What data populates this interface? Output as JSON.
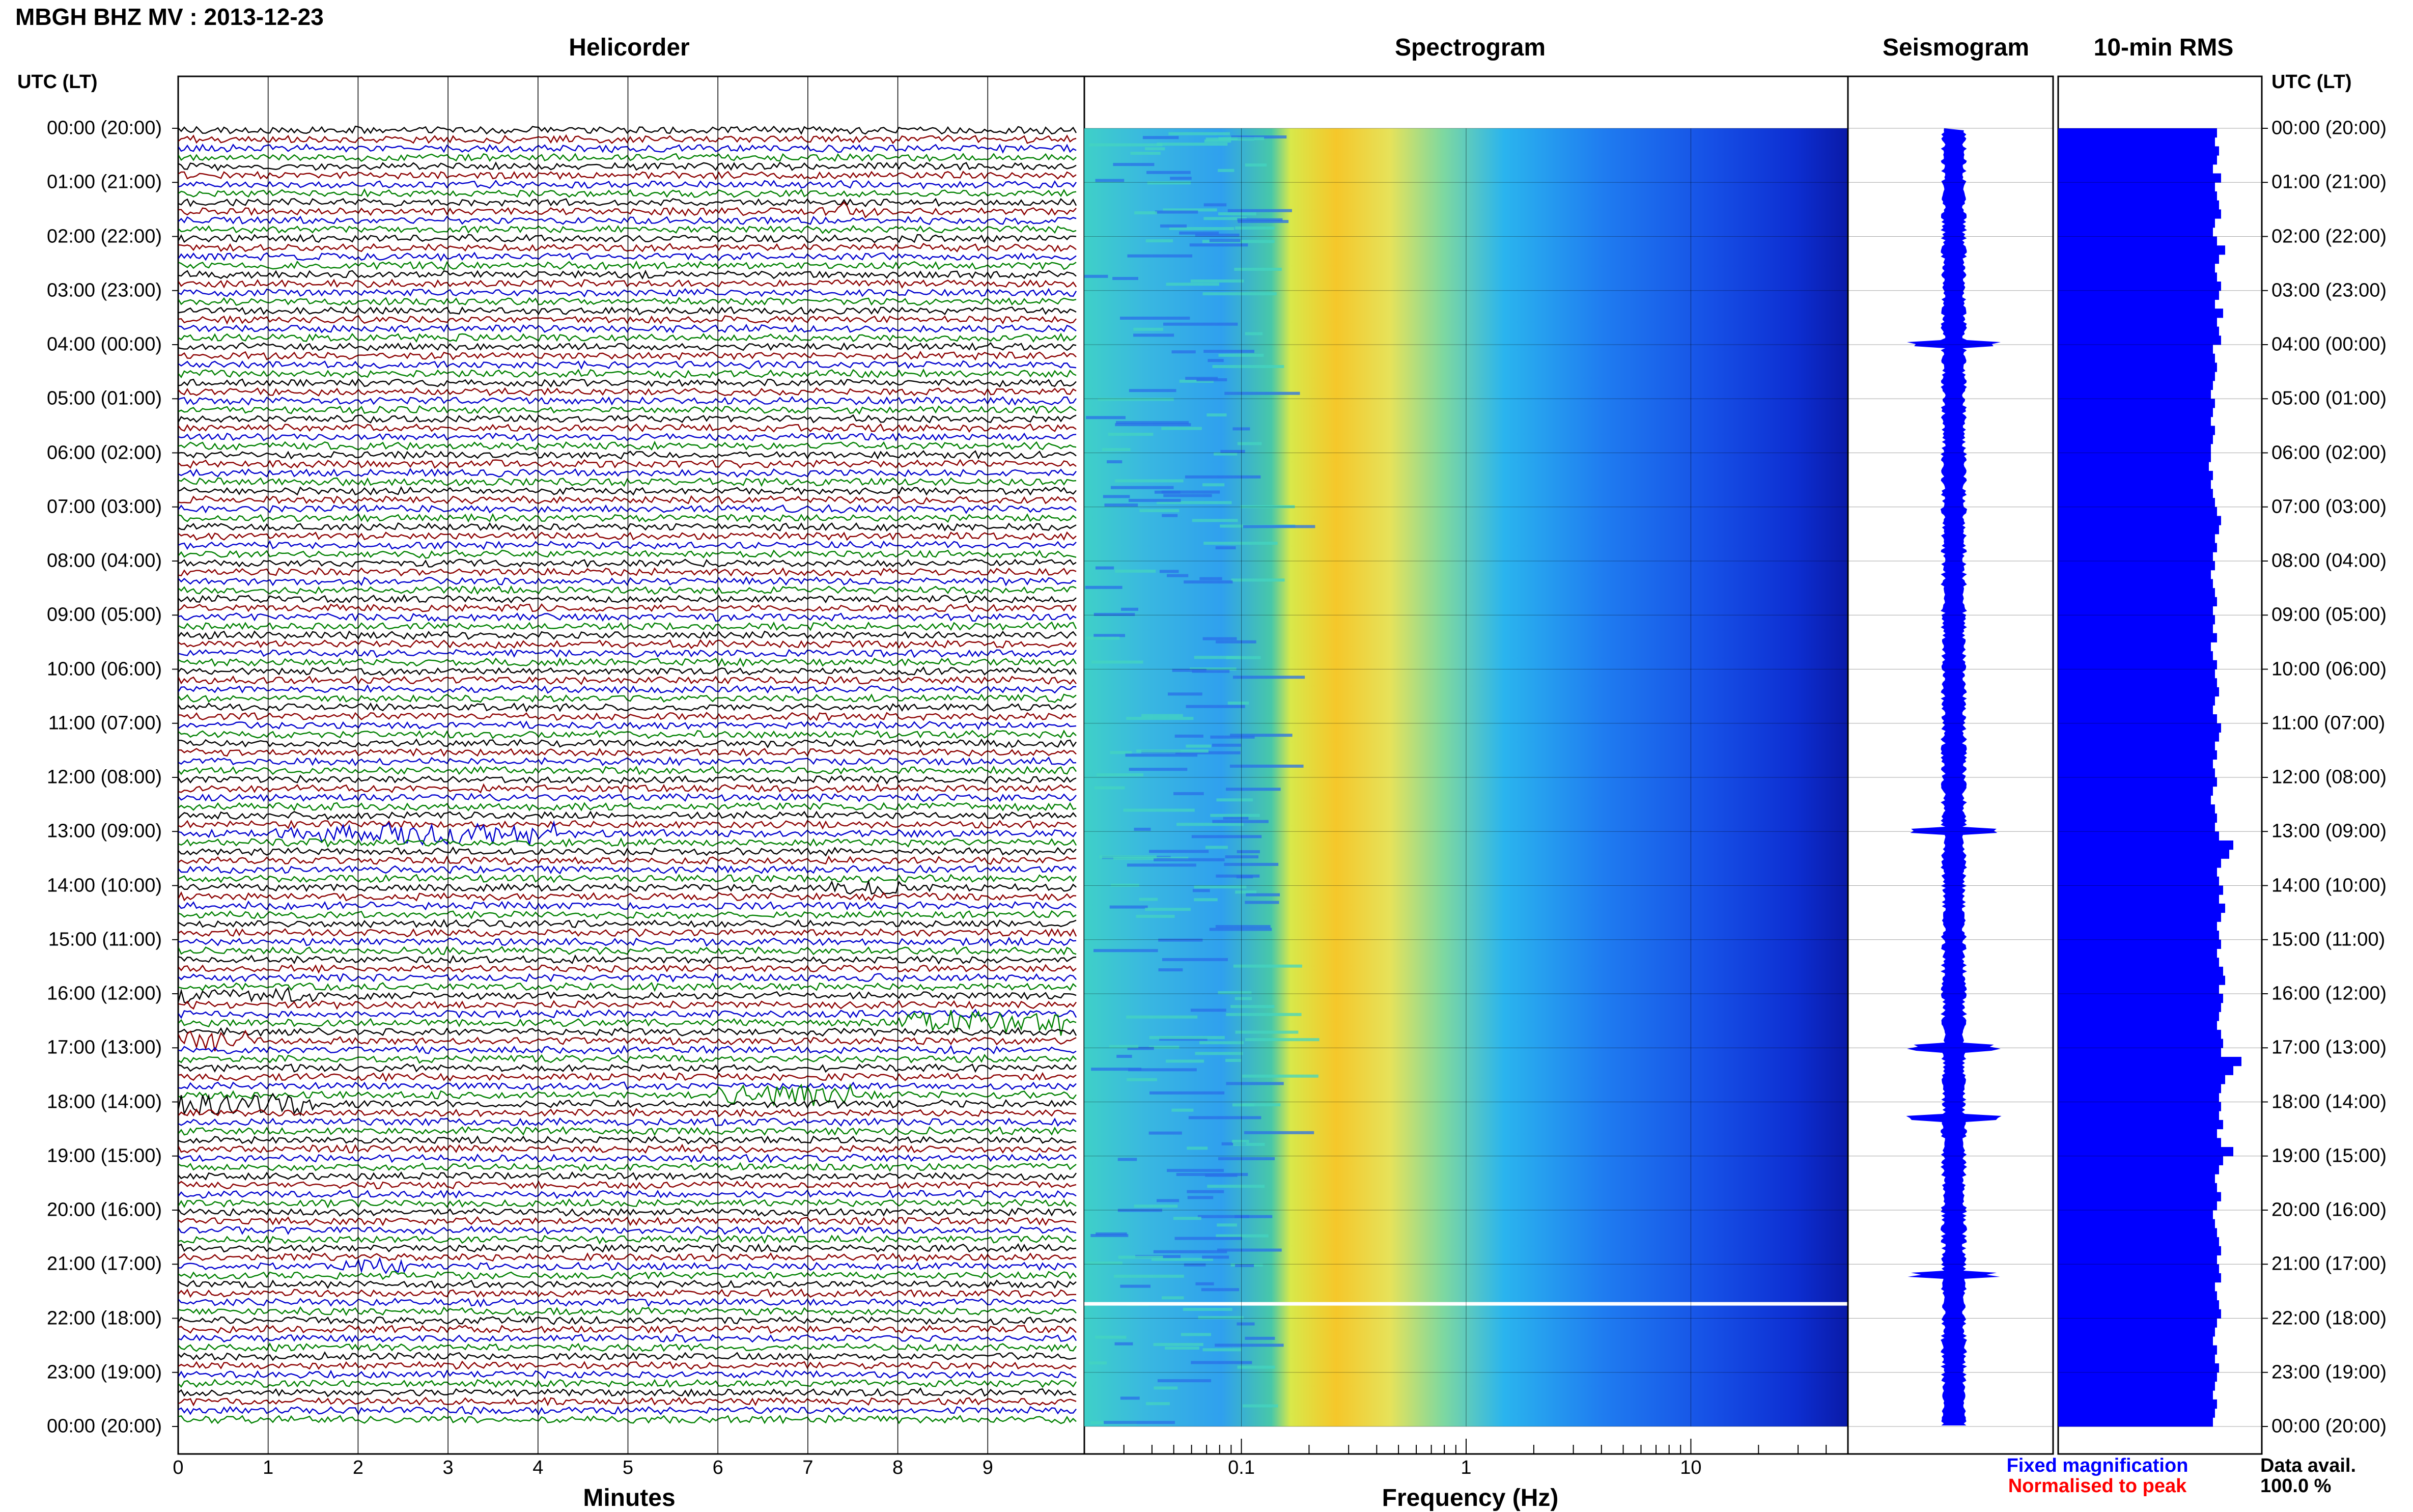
{
  "header": {
    "title": "MBGH BHZ MV : 2013-12-23"
  },
  "panels": {
    "helicorder": "Helicorder",
    "spectrogram": "Spectrogram",
    "seismogram": "Seismogram",
    "rms": "10-min RMS"
  },
  "axis_headers": {
    "left": "UTC (LT)",
    "right": "UTC (LT)"
  },
  "time_labels": [
    "00:00 (20:00)",
    "01:00 (21:00)",
    "02:00 (22:00)",
    "03:00 (23:00)",
    "04:00 (00:00)",
    "05:00 (01:00)",
    "06:00 (02:00)",
    "07:00 (03:00)",
    "08:00 (04:00)",
    "09:00 (05:00)",
    "10:00 (06:00)",
    "11:00 (07:00)",
    "12:00 (08:00)",
    "13:00 (09:00)",
    "14:00 (10:00)",
    "15:00 (11:00)",
    "16:00 (12:00)",
    "17:00 (13:00)",
    "18:00 (14:00)",
    "19:00 (15:00)",
    "20:00 (16:00)",
    "21:00 (17:00)",
    "22:00 (18:00)",
    "23:00 (19:00)",
    "00:00 (20:00)"
  ],
  "x_axes": {
    "minutes": {
      "label": "Minutes",
      "ticks": [
        "0",
        "1",
        "2",
        "3",
        "4",
        "5",
        "6",
        "7",
        "8",
        "9"
      ]
    },
    "frequency": {
      "label": "Frequency (Hz)",
      "ticks": [
        "0.1",
        "1",
        "10"
      ]
    }
  },
  "legend": {
    "fixed": "Fixed magnification",
    "normalised": "Normalised to peak",
    "fixed_color": "#0000ff",
    "normalised_color": "#ff0000"
  },
  "availability": {
    "label": "Data avail.",
    "value": "100.0 %"
  },
  "colors": {
    "trace_cycle": [
      "#000000",
      "#8b0000",
      "#0000cd",
      "#008000"
    ],
    "rms_bar": "#0000ff",
    "seismogram": "#0000ff"
  },
  "chart_data": [
    {
      "type": "line",
      "name": "helicorder",
      "x_unit": "minutes",
      "xlim": [
        0,
        10
      ],
      "rows_per_hour": 6,
      "hours": 24,
      "events": [
        {
          "hour": 1,
          "row": 3,
          "start_min": 7.3,
          "end_min": 7.7,
          "amp": 2.5
        },
        {
          "hour": 13,
          "row": 0,
          "start_min": 1.0,
          "end_min": 4.2,
          "amp": 3.0
        },
        {
          "hour": 14,
          "row": 0,
          "start_min": 7.2,
          "end_min": 8.2,
          "amp": 2.0
        },
        {
          "hour": 16,
          "row": 0,
          "start_min": 0.0,
          "end_min": 1.5,
          "amp": 2.0
        },
        {
          "hour": 16,
          "row": 3,
          "start_min": 8.0,
          "end_min": 9.9,
          "amp": 3.5
        },
        {
          "hour": 16,
          "row": 5,
          "start_min": 0.0,
          "end_min": 0.8,
          "amp": 3.0
        },
        {
          "hour": 17,
          "row": 5,
          "start_min": 6.0,
          "end_min": 7.5,
          "amp": 3.0
        },
        {
          "hour": 18,
          "row": 0,
          "start_min": 0.0,
          "end_min": 1.5,
          "amp": 3.0
        },
        {
          "hour": 21,
          "row": 0,
          "start_min": 1.8,
          "end_min": 2.6,
          "amp": 2.5
        }
      ]
    },
    {
      "type": "heatmap",
      "name": "spectrogram",
      "x_unit": "Hz",
      "x_scale": "log",
      "xlim": [
        0.02,
        50
      ],
      "y_unit": "hours",
      "ylim": [
        0,
        24
      ],
      "gap_hour": 21.7
    },
    {
      "type": "line",
      "name": "seismogram",
      "ylim": [
        0,
        24
      ],
      "spikes_hour": [
        4.0,
        13.0,
        17.0,
        18.3,
        21.2
      ]
    },
    {
      "type": "bar",
      "name": "10-min RMS",
      "bins_per_hour": 6,
      "values": [
        0.78,
        0.77,
        0.79,
        0.78,
        0.76,
        0.8,
        0.77,
        0.78,
        0.79,
        0.8,
        0.77,
        0.76,
        0.78,
        0.82,
        0.79,
        0.77,
        0.78,
        0.8,
        0.79,
        0.77,
        0.81,
        0.78,
        0.79,
        0.8,
        0.76,
        0.77,
        0.78,
        0.77,
        0.76,
        0.75,
        0.77,
        0.76,
        0.75,
        0.77,
        0.76,
        0.75,
        0.75,
        0.74,
        0.76,
        0.75,
        0.76,
        0.77,
        0.78,
        0.8,
        0.79,
        0.77,
        0.78,
        0.76,
        0.77,
        0.75,
        0.76,
        0.77,
        0.78,
        0.76,
        0.77,
        0.76,
        0.78,
        0.75,
        0.76,
        0.78,
        0.77,
        0.78,
        0.79,
        0.77,
        0.76,
        0.78,
        0.8,
        0.79,
        0.77,
        0.78,
        0.76,
        0.77,
        0.78,
        0.76,
        0.75,
        0.77,
        0.78,
        0.77,
        0.79,
        0.86,
        0.84,
        0.8,
        0.78,
        0.79,
        0.81,
        0.79,
        0.82,
        0.8,
        0.78,
        0.79,
        0.8,
        0.78,
        0.79,
        0.81,
        0.82,
        0.79,
        0.81,
        0.8,
        0.79,
        0.78,
        0.8,
        0.81,
        0.8,
        0.9,
        0.86,
        0.82,
        0.8,
        0.79,
        0.8,
        0.79,
        0.81,
        0.78,
        0.8,
        0.86,
        0.81,
        0.79,
        0.77,
        0.78,
        0.8,
        0.78,
        0.76,
        0.77,
        0.78,
        0.79,
        0.8,
        0.78,
        0.79,
        0.8,
        0.77,
        0.78,
        0.79,
        0.8,
        0.78,
        0.77,
        0.76,
        0.78,
        0.77,
        0.79,
        0.78,
        0.77,
        0.76,
        0.78,
        0.77,
        0.76
      ]
    }
  ]
}
